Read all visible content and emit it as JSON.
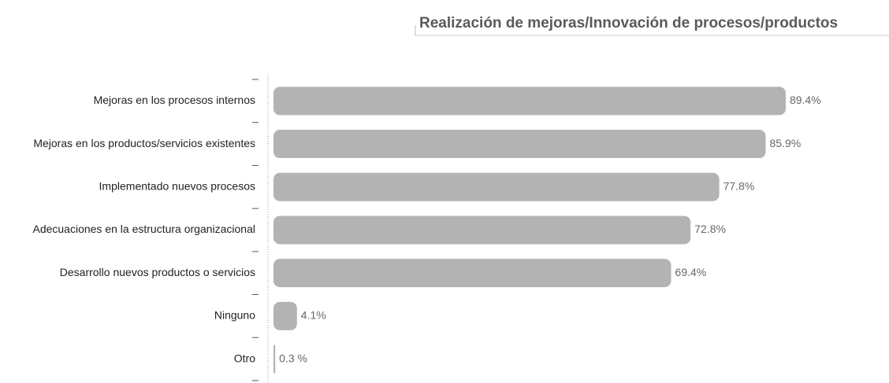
{
  "chart_data": {
    "type": "hbar",
    "title": "Realización de mejoras/Innovación de procesos/productos",
    "categories": [
      "Mejoras en los procesos internos",
      "Mejoras en los productos/servicios existentes",
      "Implementado nuevos procesos",
      "Adecuaciones en la estructura organizacional",
      "Desarrollo nuevos productos o servicios",
      "Ninguno",
      "Otro"
    ],
    "values": [
      89.4,
      85.9,
      77.8,
      72.8,
      69.4,
      4.1,
      0.3
    ],
    "value_labels": [
      "89.4%",
      "85.9%",
      "77.8%",
      "72.8%",
      "69.4%",
      "4.1%",
      "0.3 %"
    ],
    "color": "#b3b3b3"
  }
}
